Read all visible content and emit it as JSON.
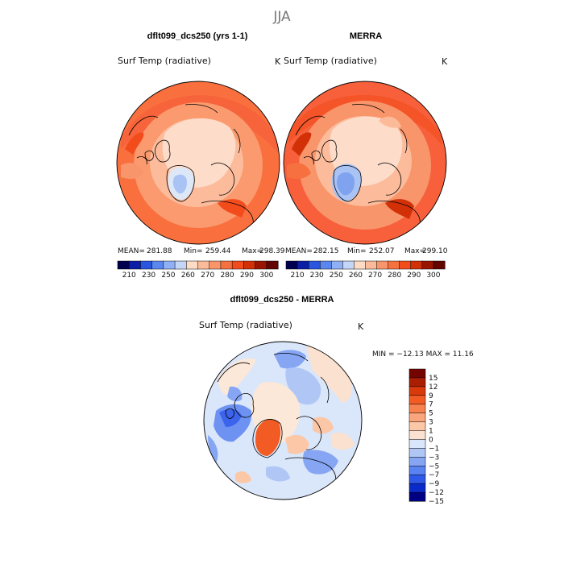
{
  "figure": {
    "season": "JJA"
  },
  "panels": {
    "model": {
      "title": "dflt099_dcs250 (yrs 1-1)",
      "variable": "Surf Temp (radiative)",
      "units": "K",
      "mean_label": "MEAN=",
      "mean": "281.88",
      "min_label": "Min=",
      "min": "259.44",
      "max_label": "Max=",
      "max": "298.39"
    },
    "reference": {
      "title": "MERRA",
      "variable": "Surf Temp (radiative)",
      "units": "K",
      "mean_label": "MEAN=",
      "mean": "282.15",
      "min_label": "Min=",
      "min": "252.07",
      "max_label": "Max=",
      "max": "299.10"
    },
    "difference": {
      "title": "dflt099_dcs250 - MERRA",
      "variable": "Surf Temp (radiative)",
      "units": "K",
      "range_text": "MIN = −12.13 MAX =  11.16"
    }
  },
  "absolute_colorbar": {
    "colors": [
      "#00004f",
      "#0a1fa6",
      "#2a55e0",
      "#5a86f0",
      "#8fb0f5",
      "#c4d6f7",
      "#fcdcc6",
      "#fcbb98",
      "#f9956b",
      "#f7703f",
      "#f24c1c",
      "#d23108",
      "#9a1500",
      "#620400"
    ],
    "tick_labels": [
      "210",
      "230",
      "250",
      "260",
      "270",
      "280",
      "290",
      "300"
    ]
  },
  "difference_colorbar": {
    "colors": [
      "#000080",
      "#0a2bc8",
      "#2f58e8",
      "#5a82f0",
      "#86a6f3",
      "#b0c7f6",
      "#dae6fa",
      "#fbe1cf",
      "#fcc7a6",
      "#fba57c",
      "#f7824e",
      "#f25b24",
      "#d93a0c",
      "#aa1e02",
      "#730400"
    ],
    "tick_labels": [
      "15",
      "12",
      "9",
      "7",
      "5",
      "3",
      "1",
      "0",
      "−1",
      "−3",
      "−5",
      "−7",
      "−9",
      "−12",
      "−15"
    ]
  },
  "map_colors": {
    "warm_outer": "#f9703e",
    "warm_mid": "#fb9a6e",
    "warm_light": "#fcbc9c",
    "arctic": "#fddcc9",
    "greenland_cold": "#a9c3f4",
    "greenland_colder": "#7fa3ef",
    "diff_neutral": "#dae6fa",
    "diff_cream": "#fbe8d8",
    "diff_blue": "#8daaf2",
    "diff_blue_dark": "#5a82f0",
    "diff_red": "#f25b24",
    "diff_pink": "#fcc7a6"
  }
}
